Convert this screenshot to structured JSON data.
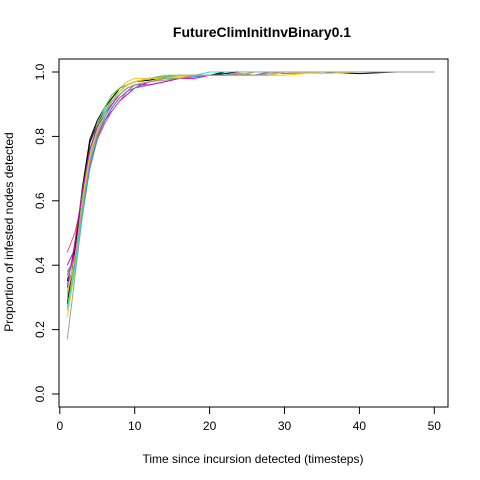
{
  "chart_data": {
    "type": "line",
    "title": "FutureClimInitInvBinary0.1",
    "xlabel": "Time since incursion detected (timesteps)",
    "ylabel": "Proportion of infested nodes detected",
    "xlim": [
      1,
      50
    ],
    "ylim": [
      0,
      1
    ],
    "xticks": [
      0,
      10,
      20,
      30,
      40,
      50
    ],
    "yticks": [
      0.0,
      0.2,
      0.4,
      0.6,
      0.8,
      1.0
    ],
    "ytick_labels": [
      "0.0",
      "0.2",
      "0.4",
      "0.6",
      "0.8",
      "1.0"
    ],
    "grid": false,
    "legend": "none",
    "x": [
      1,
      2,
      3,
      4,
      5,
      6,
      7,
      8,
      9,
      10,
      12,
      14,
      16,
      18,
      20,
      22,
      24,
      26,
      28,
      30,
      35,
      40,
      45,
      50
    ],
    "series": [
      {
        "color": "#000000",
        "values": [
          0.35,
          0.45,
          0.62,
          0.78,
          0.84,
          0.88,
          0.91,
          0.94,
          0.96,
          0.97,
          0.975,
          0.985,
          0.99,
          0.99,
          0.99,
          1.0,
          1.0,
          1.0,
          1.0,
          1.0,
          1.0,
          0.995,
          1.0,
          1.0
        ]
      },
      {
        "color": "#df536b",
        "values": [
          0.44,
          0.5,
          0.6,
          0.7,
          0.79,
          0.85,
          0.89,
          0.92,
          0.94,
          0.95,
          0.97,
          0.98,
          0.99,
          0.99,
          0.99,
          0.99,
          0.995,
          0.99,
          1.0,
          0.995,
          1.0,
          1.0,
          1.0,
          1.0
        ]
      },
      {
        "color": "#61d04f",
        "values": [
          0.3,
          0.4,
          0.58,
          0.74,
          0.83,
          0.88,
          0.92,
          0.94,
          0.96,
          0.97,
          0.98,
          0.99,
          0.99,
          0.99,
          0.99,
          0.99,
          1.0,
          1.0,
          1.0,
          1.0,
          1.0,
          1.0,
          1.0,
          1.0
        ]
      },
      {
        "color": "#2297e6",
        "values": [
          0.38,
          0.42,
          0.56,
          0.7,
          0.8,
          0.86,
          0.9,
          0.93,
          0.95,
          0.96,
          0.97,
          0.98,
          0.98,
          0.99,
          0.99,
          0.99,
          0.99,
          1.0,
          1.0,
          1.0,
          1.0,
          1.0,
          1.0,
          1.0
        ]
      },
      {
        "color": "#28e2e5",
        "values": [
          0.32,
          0.4,
          0.57,
          0.72,
          0.82,
          0.87,
          0.92,
          0.95,
          0.96,
          0.97,
          0.98,
          0.98,
          0.99,
          0.99,
          1.0,
          1.0,
          1.0,
          1.0,
          1.0,
          1.0,
          1.0,
          1.0,
          1.0,
          1.0
        ]
      },
      {
        "color": "#cd0bbc",
        "values": [
          0.4,
          0.45,
          0.6,
          0.72,
          0.8,
          0.85,
          0.88,
          0.91,
          0.93,
          0.95,
          0.97,
          0.98,
          0.99,
          0.99,
          0.99,
          0.99,
          0.99,
          0.99,
          1.0,
          1.0,
          1.0,
          1.0,
          1.0,
          1.0
        ]
      },
      {
        "color": "#f5c710",
        "values": [
          0.24,
          0.38,
          0.55,
          0.7,
          0.81,
          0.88,
          0.92,
          0.95,
          0.97,
          0.98,
          0.98,
          0.98,
          0.985,
          0.99,
          0.99,
          0.99,
          0.99,
          0.99,
          0.99,
          0.99,
          1.0,
          1.0,
          1.0,
          1.0
        ]
      },
      {
        "color": "#9e9e9e",
        "values": [
          0.17,
          0.36,
          0.55,
          0.71,
          0.8,
          0.86,
          0.9,
          0.93,
          0.95,
          0.96,
          0.97,
          0.975,
          0.98,
          0.985,
          0.99,
          0.99,
          0.99,
          0.99,
          0.995,
          1.0,
          1.0,
          1.0,
          1.0,
          1.0
        ]
      },
      {
        "color": "#000000",
        "values": [
          0.28,
          0.44,
          0.64,
          0.79,
          0.85,
          0.89,
          0.92,
          0.95,
          0.96,
          0.97,
          0.98,
          0.98,
          0.99,
          0.99,
          0.99,
          0.995,
          1.0,
          1.0,
          1.0,
          1.0,
          1.0,
          1.0,
          1.0,
          1.0
        ]
      },
      {
        "color": "#df536b",
        "values": [
          0.37,
          0.43,
          0.58,
          0.71,
          0.79,
          0.84,
          0.88,
          0.91,
          0.94,
          0.96,
          0.97,
          0.98,
          0.99,
          0.99,
          0.99,
          0.99,
          1.0,
          1.0,
          1.0,
          1.0,
          1.0,
          1.0,
          1.0,
          1.0
        ]
      },
      {
        "color": "#61d04f",
        "values": [
          0.27,
          0.41,
          0.61,
          0.75,
          0.84,
          0.89,
          0.93,
          0.95,
          0.96,
          0.97,
          0.98,
          0.985,
          0.99,
          0.99,
          0.99,
          0.99,
          0.99,
          1.0,
          1.0,
          1.0,
          1.0,
          1.0,
          1.0,
          1.0
        ]
      },
      {
        "color": "#2297e6",
        "values": [
          0.34,
          0.4,
          0.56,
          0.7,
          0.8,
          0.85,
          0.89,
          0.92,
          0.94,
          0.95,
          0.96,
          0.97,
          0.98,
          0.985,
          0.99,
          0.99,
          0.99,
          0.99,
          1.0,
          1.0,
          1.0,
          1.0,
          1.0,
          1.0
        ]
      },
      {
        "color": "#28e2e5",
        "values": [
          0.26,
          0.39,
          0.57,
          0.73,
          0.82,
          0.88,
          0.91,
          0.94,
          0.96,
          0.97,
          0.98,
          0.98,
          0.99,
          0.99,
          0.99,
          0.99,
          1.0,
          1.0,
          1.0,
          1.0,
          1.0,
          1.0,
          1.0,
          1.0
        ]
      },
      {
        "color": "#cd0bbc",
        "values": [
          0.33,
          0.47,
          0.63,
          0.76,
          0.83,
          0.87,
          0.9,
          0.93,
          0.95,
          0.96,
          0.96,
          0.97,
          0.98,
          0.98,
          0.99,
          0.99,
          0.99,
          0.99,
          0.99,
          1.0,
          1.0,
          1.0,
          1.0,
          1.0
        ]
      },
      {
        "color": "#f5c710",
        "values": [
          0.31,
          0.42,
          0.59,
          0.74,
          0.82,
          0.87,
          0.91,
          0.94,
          0.96,
          0.97,
          0.98,
          0.98,
          0.99,
          0.99,
          0.99,
          0.99,
          0.99,
          0.99,
          0.99,
          1.0,
          0.995,
          1.0,
          1.0,
          1.0
        ]
      },
      {
        "color": "#9e9e9e",
        "values": [
          0.36,
          0.42,
          0.58,
          0.72,
          0.81,
          0.87,
          0.91,
          0.93,
          0.95,
          0.96,
          0.97,
          0.98,
          0.98,
          0.99,
          0.99,
          0.99,
          1.0,
          1.0,
          1.0,
          1.0,
          1.0,
          1.0,
          1.0,
          1.0
        ]
      }
    ]
  }
}
